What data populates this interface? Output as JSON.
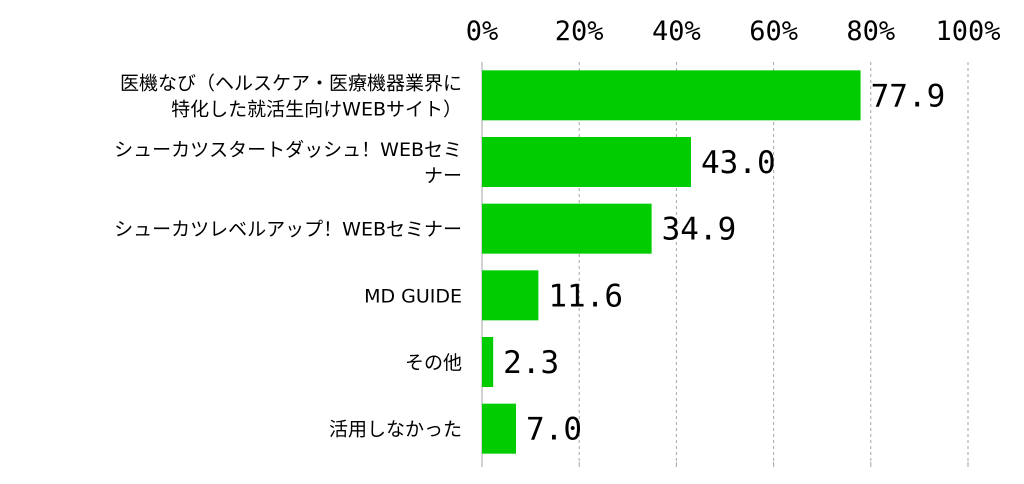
{
  "chart_data": {
    "type": "bar",
    "orientation": "horizontal",
    "title": "",
    "xlabel": "",
    "ylabel": "",
    "xlim": [
      0,
      100
    ],
    "x_ticks": [
      "0%",
      "20%",
      "40%",
      "60%",
      "80%",
      "100%"
    ],
    "grid": true,
    "categories": [
      [
        "医機なび（ヘルスケア・医療機器業界に",
        "特化した就活生向けWEBサイト）"
      ],
      [
        "シューカツスタートダッシュ！WEBセミ",
        "ナー"
      ],
      [
        "シューカツレベルアップ！WEBセミナー"
      ],
      [
        "MD GUIDE"
      ],
      [
        "その他"
      ],
      [
        "活用しなかった"
      ]
    ],
    "values": [
      77.9,
      43.0,
      34.9,
      11.6,
      2.3,
      7.0
    ],
    "value_labels": [
      "77.9",
      "43.0",
      "34.9",
      "11.6",
      "2.3",
      "7.0"
    ],
    "bar_color": "#00cc00"
  }
}
